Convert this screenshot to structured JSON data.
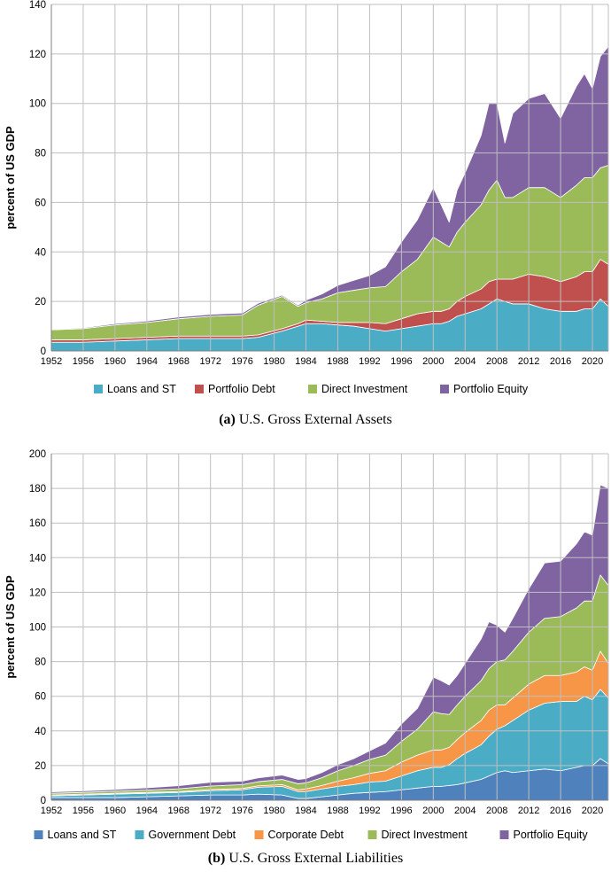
{
  "figure": {
    "caption_a_tag": "(a)",
    "caption_a_text": "U.S. Gross External Assets",
    "caption_b_tag": "(b)",
    "caption_b_text": "U.S. Gross External Liabilities"
  },
  "colors": {
    "loans_assets": "#4BACC6",
    "portfolio_debt": "#C0504D",
    "direct_investment_assets": "#9BBB59",
    "portfolio_equity_assets": "#8064A2",
    "loans_liab": "#4F81BD",
    "government_debt": "#4BACC6",
    "corporate_debt": "#F79646",
    "direct_investment_liab": "#9BBB59",
    "portfolio_equity_liab": "#8064A2",
    "grid": "#BFBFBF"
  },
  "chart_data": [
    {
      "type": "area",
      "stacked": true,
      "title": "U.S. Gross External Assets",
      "ylabel": "percent of US GDP",
      "xlabel": "",
      "xlim": [
        1952,
        2022
      ],
      "ylim": [
        0,
        140
      ],
      "yticks": [
        "0",
        "20",
        "40",
        "60",
        "80",
        "100",
        "120",
        "140"
      ],
      "xticks": [
        "1952",
        "1956",
        "1960",
        "1964",
        "1968",
        "1972",
        "1976",
        "1980",
        "1984",
        "1988",
        "1992",
        "1996",
        "2000",
        "2004",
        "2008",
        "2012",
        "2016",
        "2020"
      ],
      "legend_position": "bottom",
      "x": [
        1952,
        1956,
        1960,
        1964,
        1968,
        1972,
        1976,
        1978,
        1981,
        1983,
        1984,
        1986,
        1988,
        1990,
        1992,
        1994,
        1996,
        1998,
        2000,
        2001,
        2002,
        2003,
        2004,
        2006,
        2007,
        2008,
        2009,
        2010,
        2012,
        2014,
        2016,
        2018,
        2019,
        2020,
        2021,
        2022
      ],
      "series": [
        {
          "name": "Loans and ST",
          "color_key": "loans_assets",
          "values": [
            3.5,
            3.5,
            4,
            4.5,
            5,
            5,
            5,
            5.5,
            8,
            10,
            11,
            11,
            10.5,
            10,
            9,
            8,
            9,
            10,
            11,
            11,
            12,
            14,
            15,
            17,
            19,
            21,
            20,
            19,
            19,
            17,
            16,
            16,
            17,
            17,
            21,
            18
          ]
        },
        {
          "name": "Portfolio Debt",
          "color_key": "portfolio_debt",
          "values": [
            1,
            1,
            1,
            1,
            1,
            1,
            1,
            1,
            1,
            1,
            1.5,
            1,
            1,
            1.5,
            2.5,
            3,
            4,
            5,
            5,
            5,
            5,
            6,
            7,
            8,
            9,
            8,
            9,
            10,
            12,
            13,
            12,
            14,
            15,
            15,
            16,
            17
          ]
        },
        {
          "name": "Direct Investment",
          "color_key": "direct_investment_assets",
          "values": [
            4,
            4.5,
            5.5,
            6,
            7,
            8,
            8.5,
            12,
            13,
            7,
            7,
            9,
            12,
            13,
            14,
            15,
            19,
            22,
            30,
            28,
            25,
            28,
            30,
            34,
            37,
            40,
            33,
            33,
            35,
            36,
            34,
            37,
            38,
            38,
            37,
            40
          ]
        },
        {
          "name": "Portfolio Equity",
          "color_key": "portfolio_equity_assets",
          "values": [
            0.3,
            0.3,
            0.5,
            0.6,
            0.7,
            0.8,
            0.8,
            0.8,
            0.5,
            0.5,
            1,
            2,
            3,
            4,
            5,
            8,
            12,
            16,
            20,
            15,
            10,
            17,
            20,
            28,
            35,
            31,
            22,
            34,
            36,
            38,
            32,
            40,
            42,
            36,
            45,
            48
          ]
        }
      ]
    },
    {
      "type": "area",
      "stacked": true,
      "title": "U.S. Gross External Liabilities",
      "ylabel": "percent of US GDP",
      "xlabel": "",
      "xlim": [
        1952,
        2022
      ],
      "ylim": [
        0,
        200
      ],
      "yticks": [
        "0",
        "20",
        "40",
        "60",
        "80",
        "100",
        "120",
        "140",
        "160",
        "180",
        "200"
      ],
      "xticks": [
        "1952",
        "1956",
        "1960",
        "1964",
        "1968",
        "1972",
        "1976",
        "1980",
        "1984",
        "1988",
        "1992",
        "1996",
        "2000",
        "2004",
        "2008",
        "2012",
        "2016",
        "2020"
      ],
      "legend_position": "bottom",
      "x": [
        1952,
        1956,
        1960,
        1964,
        1968,
        1972,
        1976,
        1978,
        1981,
        1983,
        1984,
        1986,
        1988,
        1990,
        1992,
        1994,
        1996,
        1998,
        2000,
        2001,
        2002,
        2003,
        2004,
        2006,
        2007,
        2008,
        2009,
        2010,
        2012,
        2014,
        2016,
        2018,
        2019,
        2020,
        2021,
        2022
      ],
      "series": [
        {
          "name": "Loans and ST",
          "color_key": "loans_liab",
          "values": [
            1.5,
            1.5,
            1.5,
            2,
            2.5,
            3,
            3,
            3.5,
            3,
            1,
            1,
            2,
            3,
            4,
            4.5,
            5,
            6,
            7,
            8,
            8,
            8.5,
            9,
            10,
            12,
            14,
            16,
            17,
            16,
            17,
            18,
            17,
            19,
            20,
            20,
            24,
            21
          ]
        },
        {
          "name": "Government Debt",
          "color_key": "government_debt",
          "values": [
            1,
            1.5,
            2,
            2,
            2,
            2.5,
            3,
            4,
            5,
            4,
            4,
            4.5,
            5,
            5,
            6,
            6,
            8,
            10,
            11,
            11,
            12,
            15,
            17,
            20,
            23,
            25,
            26,
            30,
            35,
            38,
            40,
            38,
            40,
            38,
            40,
            38
          ]
        },
        {
          "name": "Corporate Debt",
          "color_key": "corporate_debt",
          "values": [
            0.5,
            0.5,
            0.5,
            0.5,
            0.5,
            0.7,
            0.8,
            0.8,
            1,
            1,
            1.5,
            2,
            3,
            4,
            5,
            6,
            8,
            9,
            10,
            10,
            10,
            11,
            12,
            14,
            15,
            14,
            12,
            13,
            15,
            16,
            15,
            17,
            17,
            17,
            22,
            20
          ]
        },
        {
          "name": "Direct Investment",
          "color_key": "direct_investment_liab",
          "values": [
            1,
            1,
            1.2,
            1.4,
            1.6,
            2,
            2.2,
            2.4,
            3,
            3.5,
            3.5,
            4.5,
            6,
            7,
            8,
            9,
            12,
            15,
            22,
            21,
            19,
            20,
            21,
            23,
            24,
            25,
            26,
            27,
            30,
            33,
            34,
            37,
            38,
            40,
            44,
            45
          ]
        },
        {
          "name": "Portfolio Equity",
          "color_key": "portfolio_equity_liab",
          "values": [
            0.8,
            0.9,
            1,
            1.3,
            1.8,
            2.2,
            2,
            2.2,
            2.5,
            2.5,
            2.5,
            3,
            3.5,
            4,
            5,
            7,
            10,
            12,
            20,
            19,
            17,
            17,
            19,
            24,
            27,
            21,
            16,
            19,
            25,
            32,
            32,
            37,
            40,
            38,
            52,
            56
          ]
        }
      ]
    }
  ]
}
